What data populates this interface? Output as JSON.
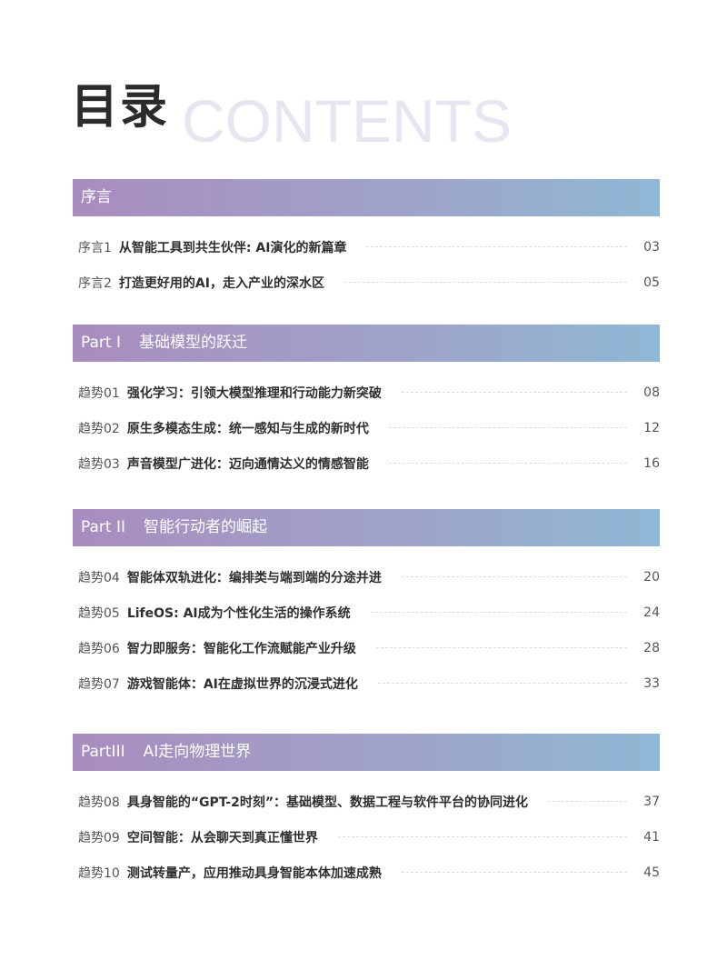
{
  "title": {
    "main": "目录",
    "background": "CONTENTS"
  },
  "sections": [
    {
      "part": "",
      "name": "序言",
      "items": [
        {
          "label": "序言1",
          "title": "从智能工具到共生伙伴: AI演化的新篇章",
          "page": "03"
        },
        {
          "label": "序言2",
          "title": "打造更好用的AI，走入产业的深水区",
          "page": "05"
        }
      ]
    },
    {
      "part": "Part I",
      "name": "基础模型的跃迁",
      "items": [
        {
          "label": "趋势01",
          "title": "强化学习：引领大模型推理和行动能力新突破",
          "page": "08"
        },
        {
          "label": "趋势02",
          "title": "原生多模态生成：统一感知与生成的新时代",
          "page": "12"
        },
        {
          "label": "趋势03",
          "title": "声音模型广进化：迈向通情达义的情感智能",
          "page": "16"
        }
      ]
    },
    {
      "part": "Part II",
      "name": "智能行动者的崛起",
      "items": [
        {
          "label": "趋势04",
          "title": "智能体双轨进化：编排类与端到端的分途并进",
          "page": "20"
        },
        {
          "label": "趋势05",
          "title": "LifeOS: AI成为个性化生活的操作系统",
          "page": "24"
        },
        {
          "label": "趋势06",
          "title": "智力即服务：智能化工作流赋能产业升级",
          "page": "28"
        },
        {
          "label": "趋势07",
          "title": "游戏智能体：AI在虚拟世界的沉浸式进化",
          "page": "33"
        }
      ]
    },
    {
      "part": "PartIII",
      "name": "AI走向物理世界",
      "items": [
        {
          "label": "趋势08",
          "title": "具身智能的“GPT-2时刻”：基础模型、数据工程与软件平台的协同进化",
          "page": "37"
        },
        {
          "label": "趋势09",
          "title": "空间智能：从会聊天到真正懂世界",
          "page": "41"
        },
        {
          "label": "趋势10",
          "title": "测试转量产，应用推动具身智能本体加速成熟",
          "page": "45"
        }
      ]
    }
  ]
}
